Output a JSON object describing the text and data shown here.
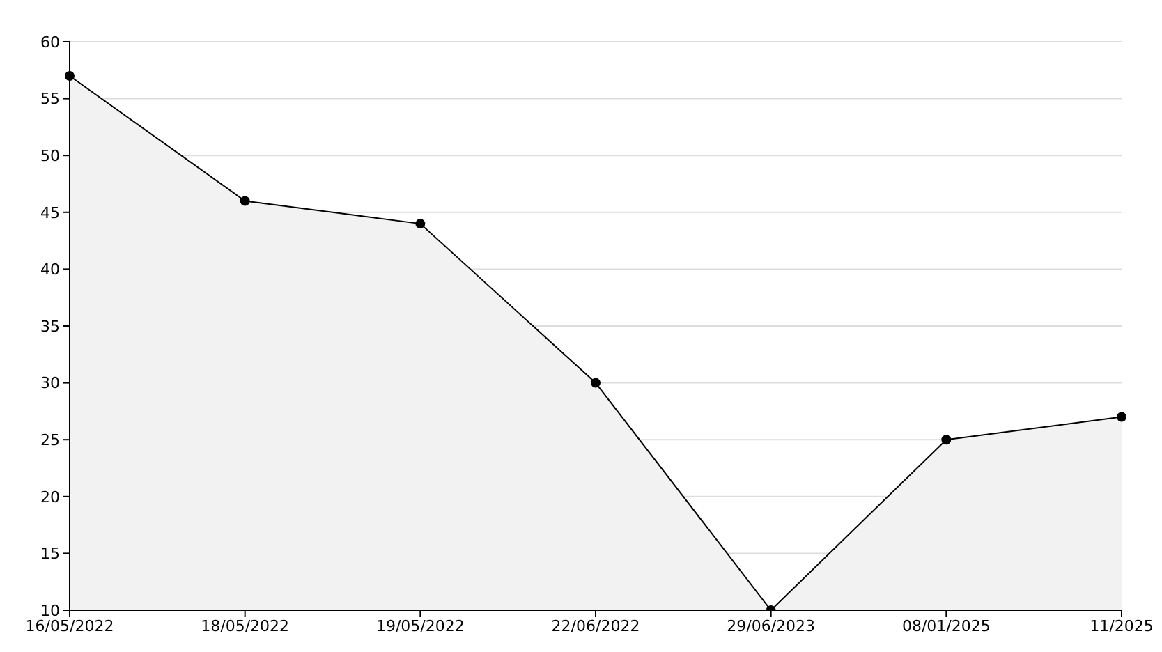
{
  "chart_data": {
    "type": "area",
    "categories": [
      "16/05/2022",
      "18/05/2022",
      "19/05/2022",
      "22/06/2022",
      "29/06/2023",
      "08/01/2025",
      "11/2025"
    ],
    "series": [
      {
        "color": "#000000",
        "values": [
          57,
          46,
          44,
          30,
          10,
          25,
          27
        ]
      }
    ],
    "ylim": [
      10,
      60
    ],
    "yticks": [
      10,
      15,
      20,
      25,
      30,
      35,
      40,
      45,
      50,
      55,
      60
    ],
    "grid": "y",
    "marker": "circle",
    "line_style": "solid"
  }
}
